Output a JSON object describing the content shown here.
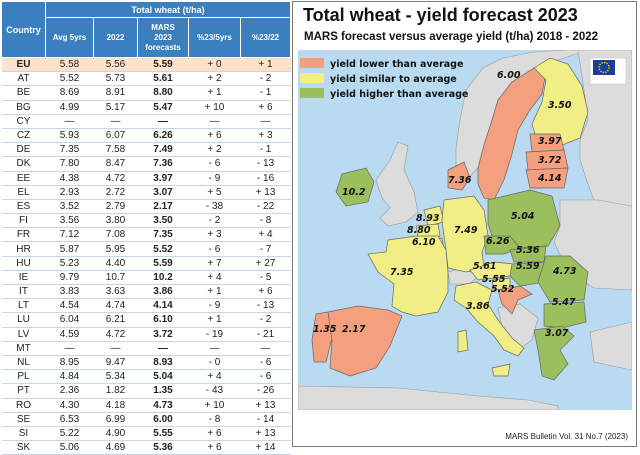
{
  "table": {
    "header_group": "Total wheat (t/ha)",
    "col_country": "Country",
    "columns": [
      "Avg 5yrs",
      "2022",
      "MARS 2023 forecasts",
      "%23/5yrs",
      "%23/22"
    ],
    "rows": [
      {
        "country": "EU",
        "avg": "5.58",
        "y2022": "5.56",
        "f2023": "5.59",
        "p5": "+ 0",
        "p22": "+ 1"
      },
      {
        "country": "AT",
        "avg": "5.52",
        "y2022": "5.73",
        "f2023": "5.61",
        "p5": "+ 2",
        "p22": "- 2"
      },
      {
        "country": "BE",
        "avg": "8.69",
        "y2022": "8.91",
        "f2023": "8.80",
        "p5": "+ 1",
        "p22": "- 1"
      },
      {
        "country": "BG",
        "avg": "4.99",
        "y2022": "5.17",
        "f2023": "5.47",
        "p5": "+ 10",
        "p22": "+ 6"
      },
      {
        "country": "CY",
        "avg": "—",
        "y2022": "—",
        "f2023": "—",
        "p5": "—",
        "p22": "—"
      },
      {
        "country": "CZ",
        "avg": "5.93",
        "y2022": "6.07",
        "f2023": "6.26",
        "p5": "+ 6",
        "p22": "+ 3"
      },
      {
        "country": "DE",
        "avg": "7.35",
        "y2022": "7.58",
        "f2023": "7.49",
        "p5": "+ 2",
        "p22": "- 1"
      },
      {
        "country": "DK",
        "avg": "7.80",
        "y2022": "8.47",
        "f2023": "7.36",
        "p5": "- 6",
        "p22": "- 13"
      },
      {
        "country": "EE",
        "avg": "4.38",
        "y2022": "4.72",
        "f2023": "3.97",
        "p5": "- 9",
        "p22": "- 16"
      },
      {
        "country": "EL",
        "avg": "2.93",
        "y2022": "2.72",
        "f2023": "3.07",
        "p5": "+ 5",
        "p22": "+ 13"
      },
      {
        "country": "ES",
        "avg": "3.52",
        "y2022": "2.79",
        "f2023": "2.17",
        "p5": "- 38",
        "p22": "- 22"
      },
      {
        "country": "FI",
        "avg": "3.56",
        "y2022": "3.80",
        "f2023": "3.50",
        "p5": "- 2",
        "p22": "- 8"
      },
      {
        "country": "FR",
        "avg": "7.12",
        "y2022": "7.08",
        "f2023": "7.35",
        "p5": "+ 3",
        "p22": "+ 4"
      },
      {
        "country": "HR",
        "avg": "5.87",
        "y2022": "5.95",
        "f2023": "5.52",
        "p5": "- 6",
        "p22": "- 7"
      },
      {
        "country": "HU",
        "avg": "5.23",
        "y2022": "4.40",
        "f2023": "5.59",
        "p5": "+ 7",
        "p22": "+ 27"
      },
      {
        "country": "IE",
        "avg": "9.79",
        "y2022": "10.7",
        "f2023": "10.2",
        "p5": "+ 4",
        "p22": "- 5"
      },
      {
        "country": "IT",
        "avg": "3.83",
        "y2022": "3.63",
        "f2023": "3.86",
        "p5": "+ 1",
        "p22": "+ 6"
      },
      {
        "country": "LT",
        "avg": "4.54",
        "y2022": "4.74",
        "f2023": "4.14",
        "p5": "- 9",
        "p22": "- 13"
      },
      {
        "country": "LU",
        "avg": "6.04",
        "y2022": "6.21",
        "f2023": "6.10",
        "p5": "+ 1",
        "p22": "- 2"
      },
      {
        "country": "LV",
        "avg": "4.59",
        "y2022": "4.72",
        "f2023": "3.72",
        "p5": "- 19",
        "p22": "- 21"
      },
      {
        "country": "MT",
        "avg": "—",
        "y2022": "—",
        "f2023": "—",
        "p5": "—",
        "p22": "—"
      },
      {
        "country": "NL",
        "avg": "8.95",
        "y2022": "9.47",
        "f2023": "8.93",
        "p5": "- 0",
        "p22": "- 6"
      },
      {
        "country": "PL",
        "avg": "4.84",
        "y2022": "5.34",
        "f2023": "5.04",
        "p5": "+ 4",
        "p22": "- 6"
      },
      {
        "country": "PT",
        "avg": "2.36",
        "y2022": "1.82",
        "f2023": "1.35",
        "p5": "- 43",
        "p22": "- 26"
      },
      {
        "country": "RO",
        "avg": "4.30",
        "y2022": "4.18",
        "f2023": "4.73",
        "p5": "+ 10",
        "p22": "+ 13"
      },
      {
        "country": "SE",
        "avg": "6.53",
        "y2022": "6.99",
        "f2023": "6.00",
        "p5": "- 8",
        "p22": "- 14"
      },
      {
        "country": "SI",
        "avg": "5.22",
        "y2022": "4.90",
        "f2023": "5.55",
        "p5": "+ 6",
        "p22": "+ 13"
      },
      {
        "country": "SK",
        "avg": "5.06",
        "y2022": "4.69",
        "f2023": "5.36",
        "p5": "+ 6",
        "p22": "+ 14"
      }
    ]
  },
  "map": {
    "title": "Total wheat - yield forecast 2023",
    "subtitle": "MARS forecast versus average yield (t/ha) 2018 - 2022",
    "legend": [
      {
        "label": "yield lower than average",
        "color": "#f4a07e"
      },
      {
        "label": "yield similar to average",
        "color": "#f0ee84"
      },
      {
        "label": "yield higher than average",
        "color": "#9bbf5c"
      }
    ],
    "colors": {
      "sea": "#b9daf0",
      "non_eu": "#dcdcdc",
      "lower": "#f4a07e",
      "similar": "#f0ee84",
      "higher": "#9bbf5c",
      "border": "#666666"
    },
    "source": "MARS Bulletin Vol. 31 No.7 (2023)",
    "logo_text": "European Commission",
    "country_values": [
      {
        "code": "SE",
        "value": "6.00"
      },
      {
        "code": "FI",
        "value": "3.50"
      },
      {
        "code": "EE",
        "value": "3.97"
      },
      {
        "code": "LV",
        "value": "3.72"
      },
      {
        "code": "LT",
        "value": "4.14"
      },
      {
        "code": "DK",
        "value": "7.36"
      },
      {
        "code": "IE",
        "value": "10.2"
      },
      {
        "code": "NL",
        "value": "8.93"
      },
      {
        "code": "BE",
        "value": "8.80"
      },
      {
        "code": "LU",
        "value": "6.10"
      },
      {
        "code": "DE",
        "value": "7.49"
      },
      {
        "code": "PL",
        "value": "5.04"
      },
      {
        "code": "CZ",
        "value": "6.26"
      },
      {
        "code": "SK",
        "value": "5.36"
      },
      {
        "code": "FR",
        "value": "7.35"
      },
      {
        "code": "AT",
        "value": "5.61"
      },
      {
        "code": "HU",
        "value": "5.59"
      },
      {
        "code": "RO",
        "value": "4.73"
      },
      {
        "code": "SI",
        "value": "5.55"
      },
      {
        "code": "HR",
        "value": "5.52"
      },
      {
        "code": "BG",
        "value": "5.47"
      },
      {
        "code": "IT",
        "value": "3.86"
      },
      {
        "code": "PT",
        "value": "1.35"
      },
      {
        "code": "ES",
        "value": "2.17"
      },
      {
        "code": "EL",
        "value": "3.07"
      }
    ]
  }
}
